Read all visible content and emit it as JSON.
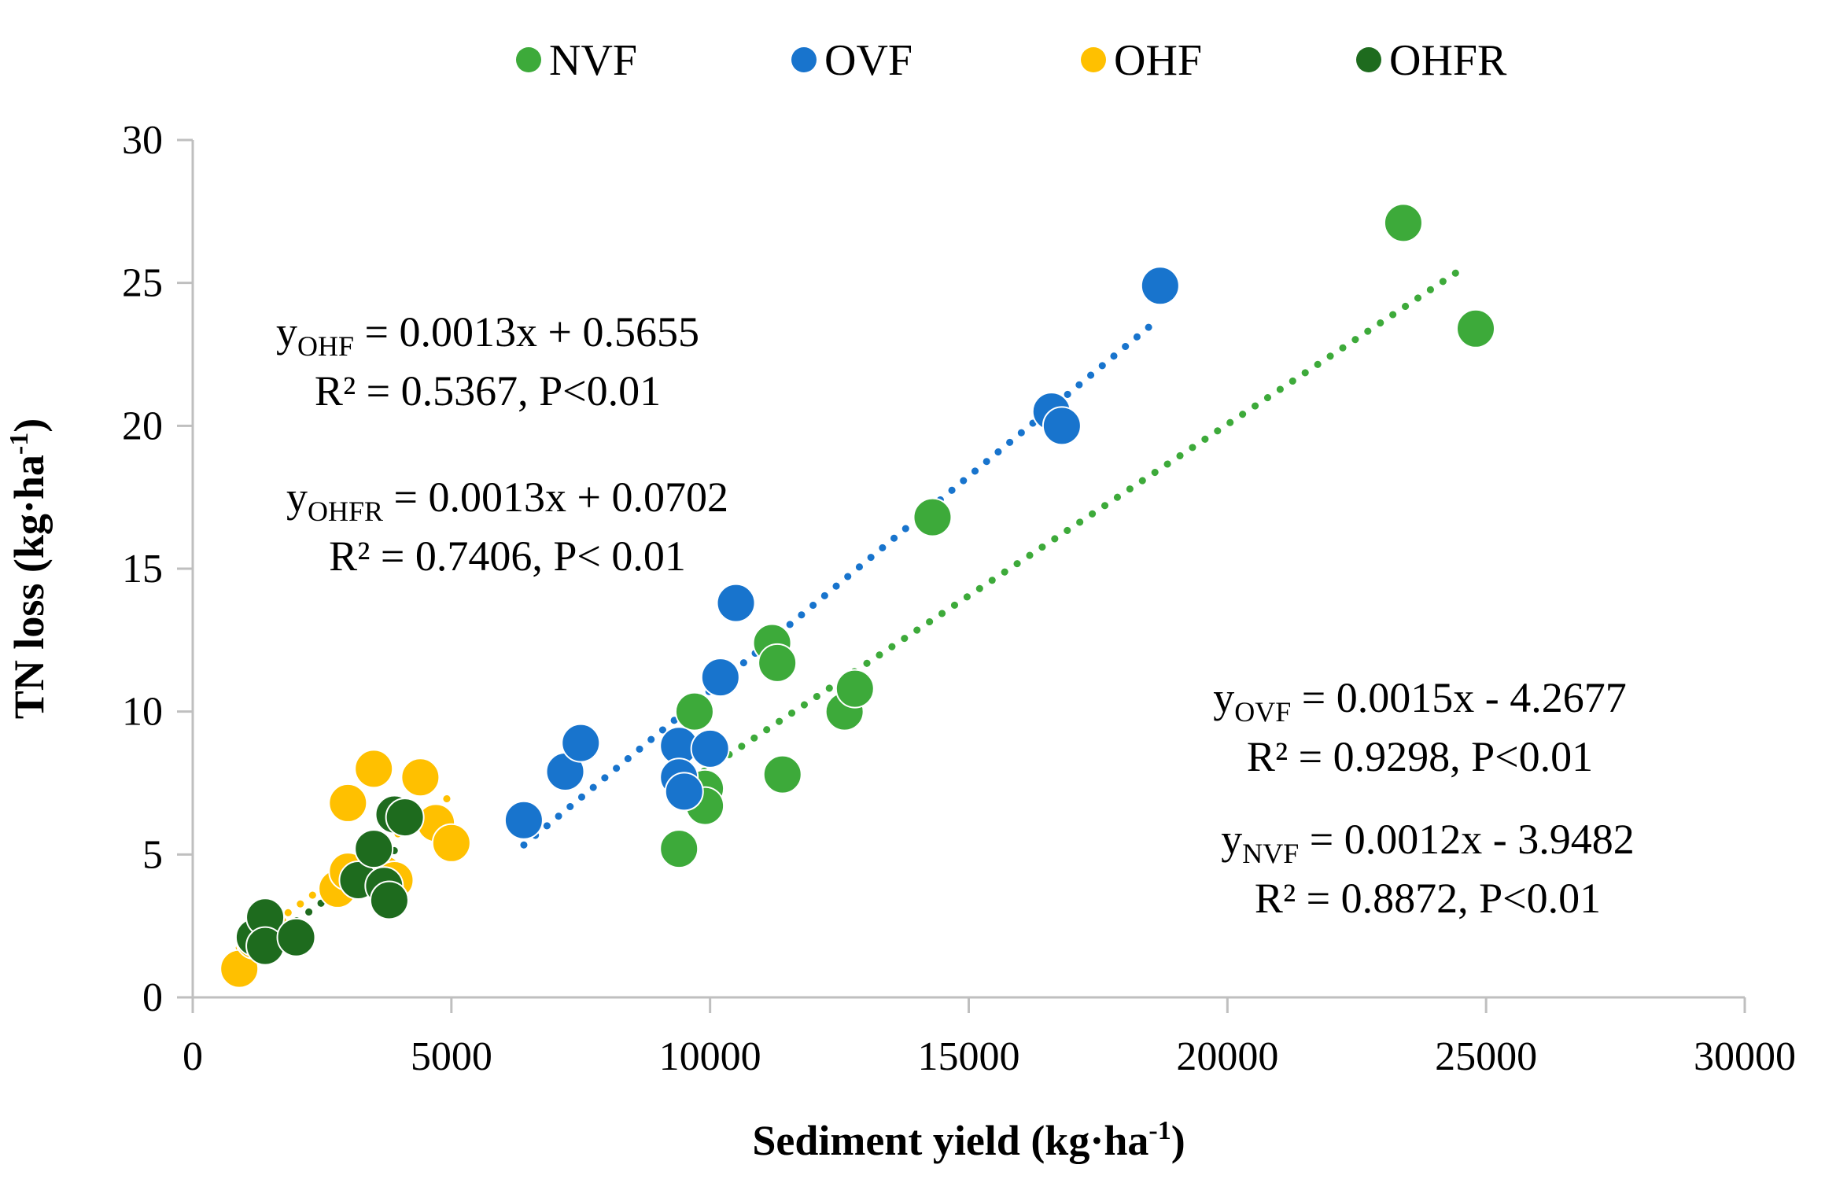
{
  "chart_data": {
    "type": "scatter",
    "title": "",
    "xlabel": "Sediment yield (kg·ha",
    "xlabel_sup": "-1",
    "xlabel_end": ")",
    "ylabel": "TN loss (kg·ha",
    "ylabel_sup": "-1",
    "ylabel_end": ")",
    "xlim": [
      0,
      30000
    ],
    "ylim": [
      0,
      30
    ],
    "xticks": [
      0,
      5000,
      10000,
      15000,
      20000,
      25000,
      30000
    ],
    "yticks": [
      0,
      5,
      10,
      15,
      20,
      25,
      30
    ],
    "legend_position": "top",
    "series": [
      {
        "name": "NVF",
        "color": "#3DAA3A",
        "points": [
          [
            9400,
            5.2
          ],
          [
            9900,
            7.3
          ],
          [
            9900,
            6.7
          ],
          [
            9700,
            10
          ],
          [
            11400,
            7.8
          ],
          [
            11200,
            12.4
          ],
          [
            11300,
            11.7
          ],
          [
            12600,
            10
          ],
          [
            12800,
            10.8
          ],
          [
            14300,
            16.8
          ],
          [
            23400,
            27.1
          ],
          [
            24800,
            23.4
          ]
        ],
        "trend": {
          "slope": 0.0012,
          "intercept": -3.9482,
          "x_range": [
            9400,
            24600
          ]
        },
        "equation": {
          "y": "y",
          "sub": "NVF",
          "rhs": " = 0.0012x - 3.9482",
          "r2": "R² = 0.8872, P<0.01"
        }
      },
      {
        "name": "OVF",
        "color": "#1874CD",
        "points": [
          [
            6400,
            6.2
          ],
          [
            7200,
            7.9
          ],
          [
            7500,
            8.9
          ],
          [
            9400,
            8.8
          ],
          [
            9400,
            7.7
          ],
          [
            9500,
            7.2
          ],
          [
            10000,
            8.7
          ],
          [
            10200,
            11.2
          ],
          [
            10500,
            13.8
          ],
          [
            16600,
            20.5
          ],
          [
            16800,
            20
          ],
          [
            18700,
            24.9
          ]
        ],
        "trend": {
          "slope": 0.0015,
          "intercept": -4.2677,
          "x_range": [
            6400,
            18500
          ]
        },
        "equation": {
          "y": "y",
          "sub": "OVF",
          "rhs": " = 0.0015x - 4.2677",
          "r2": "R² = 0.9298, P<0.01"
        }
      },
      {
        "name": "OHF",
        "color": "#FFC000",
        "points": [
          [
            900,
            1
          ],
          [
            1200,
            2
          ],
          [
            2800,
            3.8
          ],
          [
            3000,
            4.4
          ],
          [
            3000,
            6.8
          ],
          [
            3500,
            8
          ],
          [
            3700,
            4.3
          ],
          [
            3900,
            4.1
          ],
          [
            4400,
            7.7
          ],
          [
            4700,
            6.1
          ],
          [
            5000,
            5.4
          ],
          [
            1500,
            2.4
          ]
        ],
        "trend": {
          "slope": 0.0013,
          "intercept": 0.5655,
          "x_range": [
            900,
            5000
          ]
        },
        "equation": {
          "y": "y",
          "sub": "OHF",
          "rhs": " = 0.0013x + 0.5655",
          "r2": "R² = 0.5367, P<0.01"
        }
      },
      {
        "name": "OHFR",
        "color": "#1E6B1E",
        "points": [
          [
            1200,
            2.1
          ],
          [
            1400,
            2.8
          ],
          [
            1400,
            1.8
          ],
          [
            2000,
            2.1
          ],
          [
            3200,
            4.1
          ],
          [
            3500,
            5.2
          ],
          [
            3700,
            3.9
          ],
          [
            3800,
            3.4
          ],
          [
            3900,
            6.4
          ],
          [
            4100,
            6.3
          ]
        ],
        "trend": {
          "slope": 0.0013,
          "intercept": 0.0702,
          "x_range": [
            1300,
            4100
          ]
        },
        "equation": {
          "y": "y",
          "sub": "OHFR",
          "rhs": " = 0.0013x + 0.0702",
          "r2": "R² = 0.7406, P< 0.01"
        }
      }
    ]
  }
}
